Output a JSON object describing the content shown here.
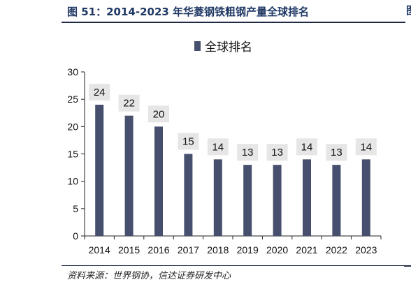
{
  "figure": {
    "title": "图 51：2014-2023 年华菱钢铁粗钢产量全球排名",
    "source": "资料来源：世界钢协，信达证券研发中心",
    "edge_char": "图"
  },
  "chart_data": {
    "type": "bar",
    "title": "",
    "xlabel": "",
    "ylabel": "",
    "categories": [
      "2014",
      "2015",
      "2016",
      "2017",
      "2018",
      "2019",
      "2020",
      "2021",
      "2022",
      "2023"
    ],
    "series": [
      {
        "name": "全球排名",
        "values": [
          24,
          22,
          20,
          15,
          14,
          13,
          13,
          14,
          13,
          14
        ]
      }
    ],
    "ylim": [
      0,
      30
    ],
    "yticks": [
      0,
      5,
      10,
      15,
      20,
      25,
      30
    ],
    "legend_position": "top-center",
    "data_labels": true,
    "grid": false,
    "colors": {
      "bar": "#464f6e",
      "label_bg": "#e6e6e6"
    }
  }
}
